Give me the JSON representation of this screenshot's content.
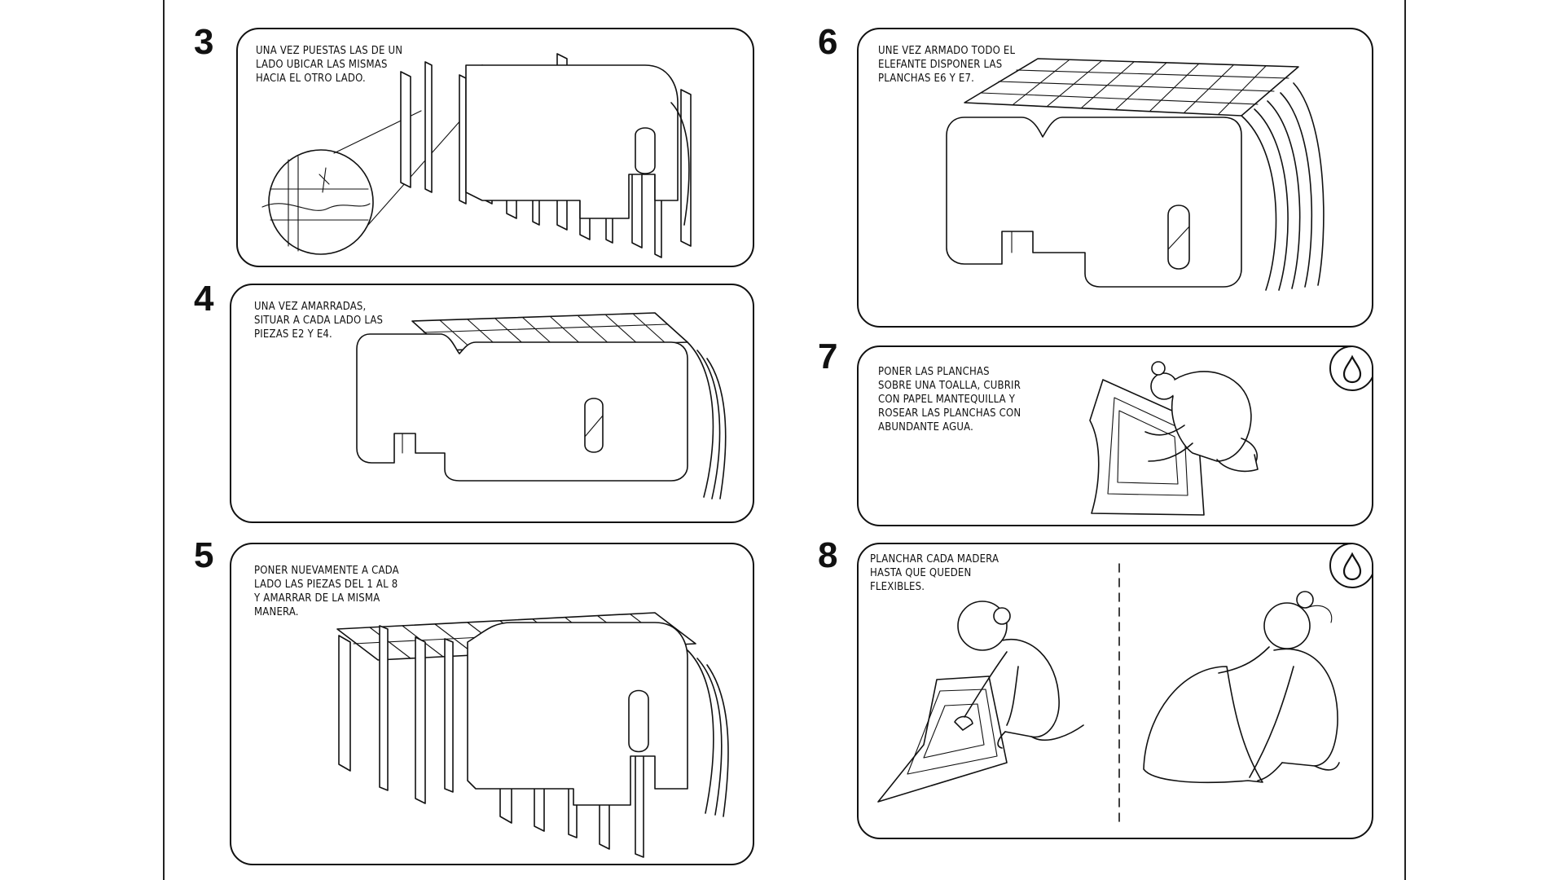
{
  "left_page": {
    "steps": [
      {
        "number": "3",
        "text": "UNA VEZ PUESTAS LAS DE UN\nLADO UBICAR LAS MISMAS\nHACIA EL OTRO LADO."
      },
      {
        "number": "4",
        "text": "UNA VEZ AMARRADAS,\nSITUAR A CADA LADO LAS\nPIEZAS E2 Y E4."
      },
      {
        "number": "5",
        "text": "PONER NUEVAMENTE A CADA\nLADO LAS PIEZAS DEL 1 AL 8\nY AMARRAR DE LA MISMA\nMANERA."
      }
    ]
  },
  "right_page": {
    "steps": [
      {
        "number": "6",
        "text": "UNE VEZ ARMADO TODO EL\nELEFANTE DISPONER LAS\nPLANCHAS E6 Y E7."
      },
      {
        "number": "7",
        "text": "PONER LAS PLANCHAS\nSOBRE UNA TOALLA, CUBRIR\nCON PAPEL MANTEQUILLA Y\nROSEAR LAS PLANCHAS CON\nABUNDANTE AGUA.",
        "icon": "water-drop-icon"
      },
      {
        "number": "8",
        "text": "PLANCHAR CADA MADERA\nHASTA QUE QUEDEN\nFLEXIBLES.",
        "icon": "water-drop-icon"
      }
    ]
  }
}
